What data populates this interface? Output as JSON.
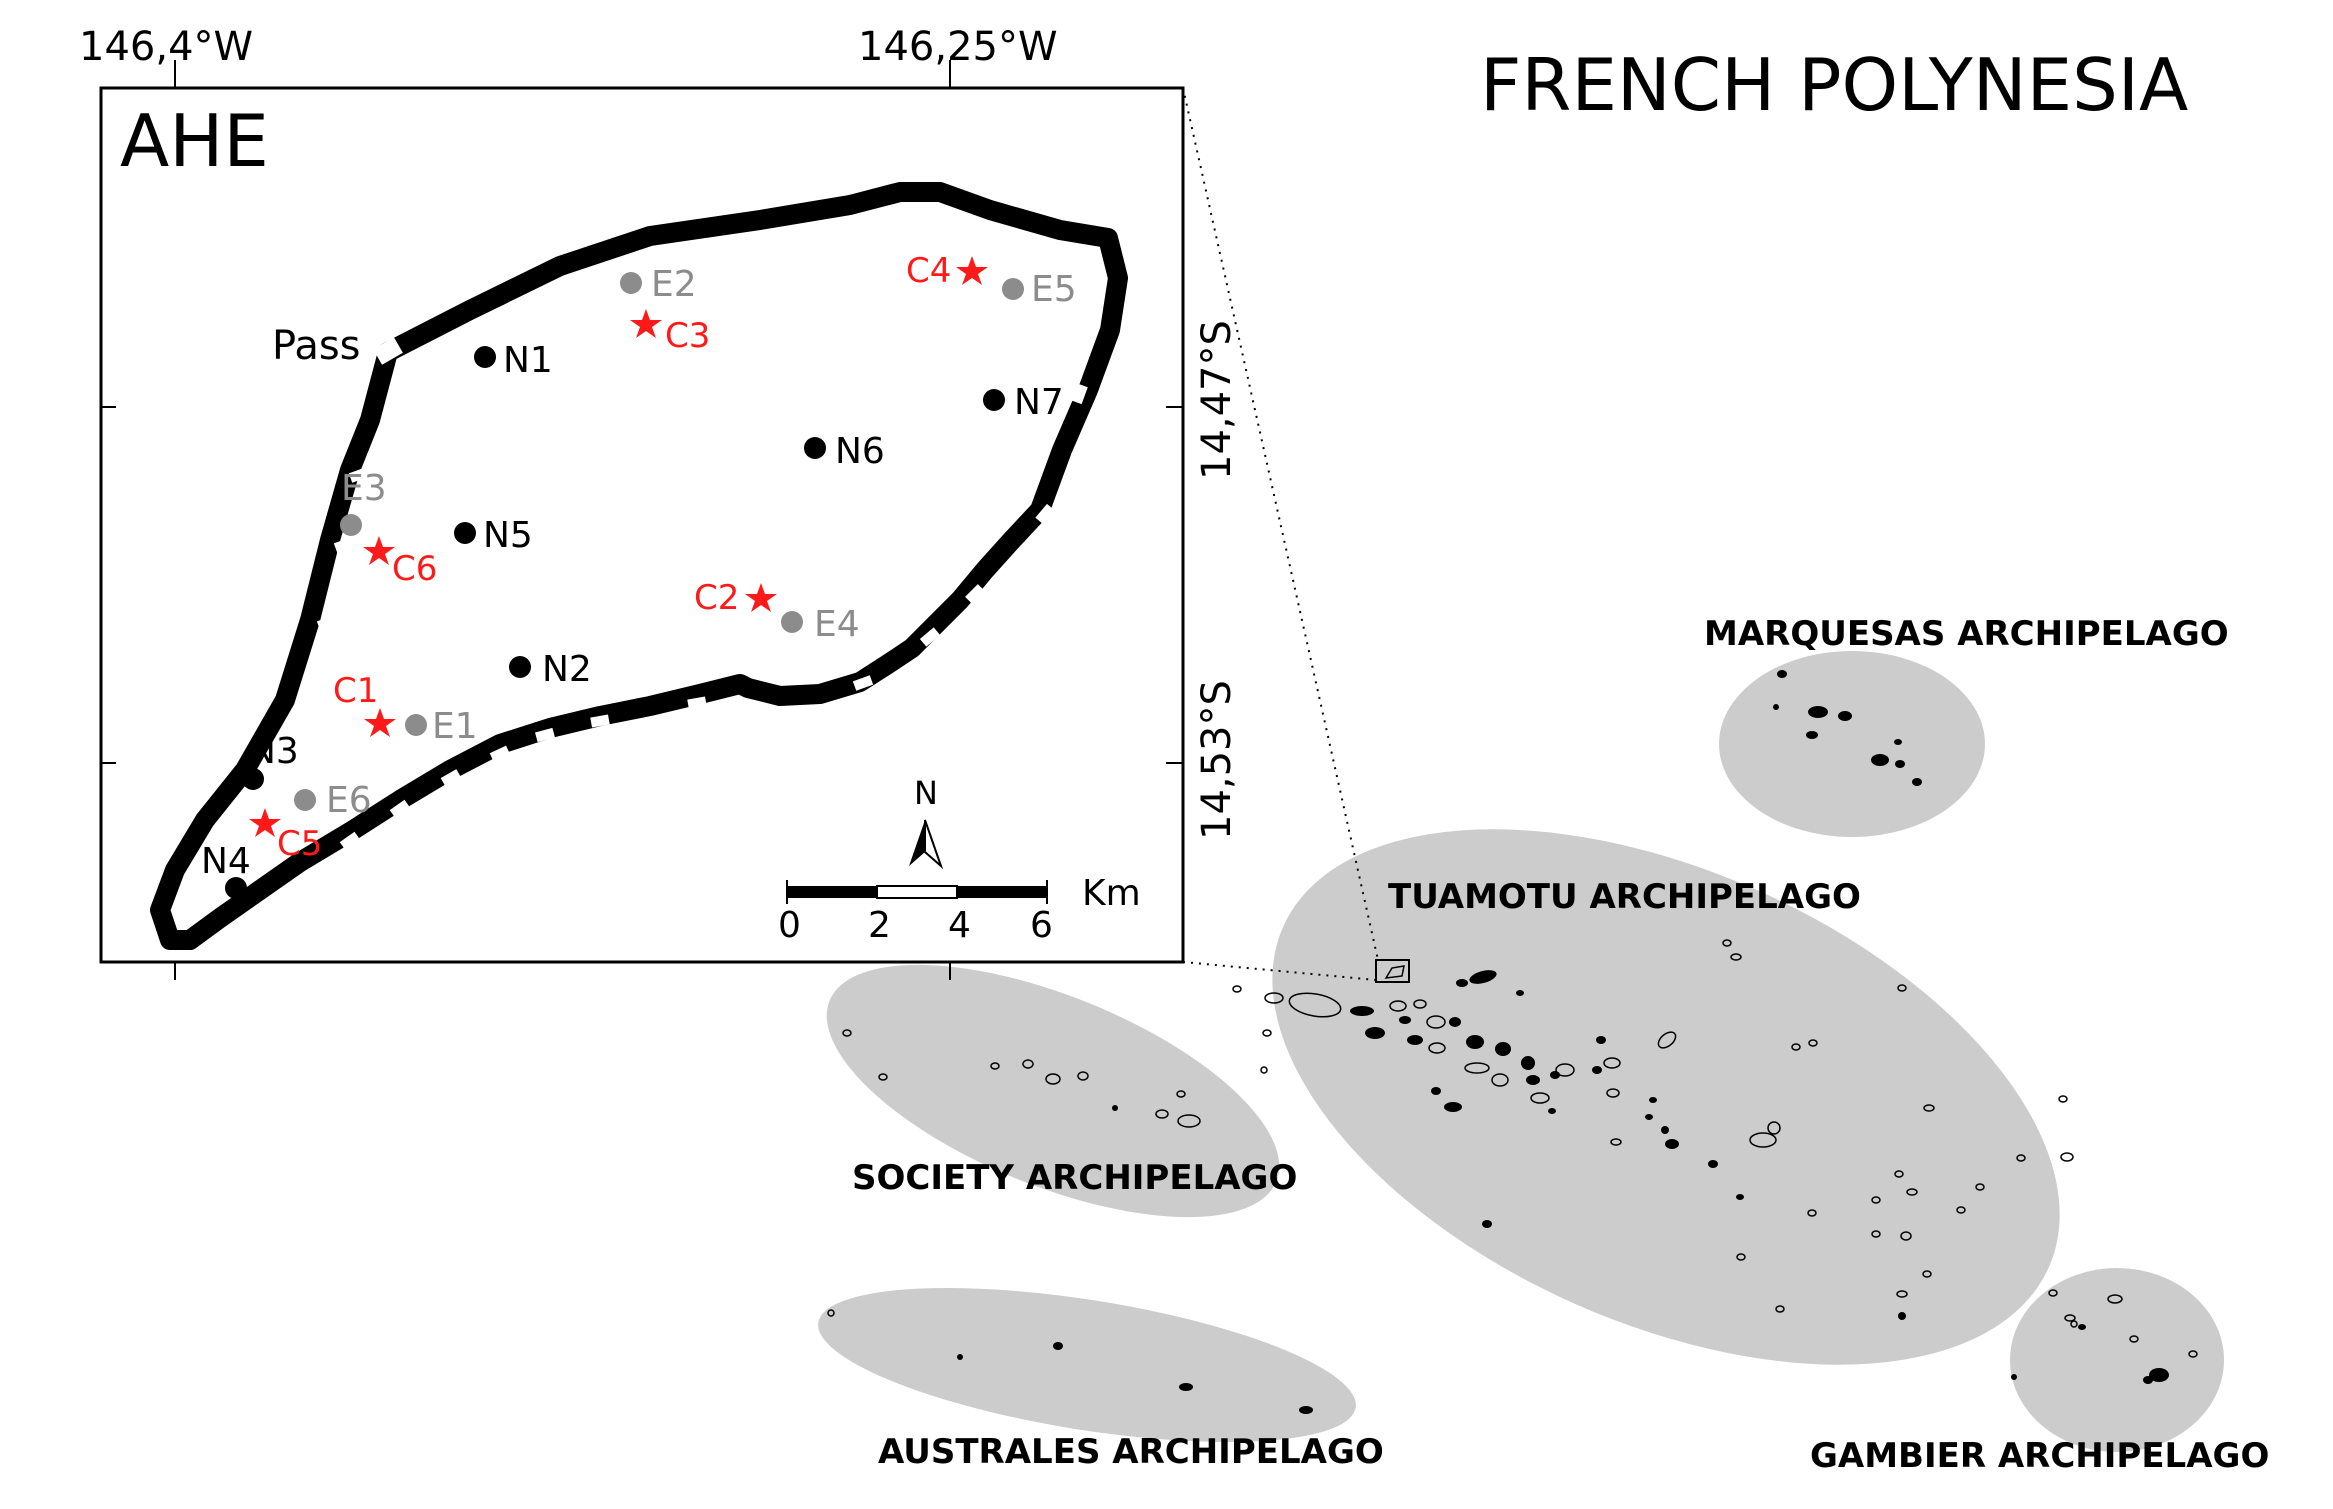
{
  "map": {
    "title": "FRENCH POLYNESIA",
    "inset": {
      "name": "AHE",
      "lon_labels": [
        "146,4°W",
        "146,25°W"
      ],
      "lat_labels": [
        "14,47°S",
        "14,53°S"
      ],
      "pass_label": "Pass",
      "north_label": "N",
      "scale_unit": "Km",
      "scale_ticks": [
        "0",
        "2",
        "4",
        "6"
      ],
      "stations": {
        "N": [
          {
            "label": "N1",
            "category": "N"
          },
          {
            "label": "N2",
            "category": "N"
          },
          {
            "label": "N3",
            "category": "N"
          },
          {
            "label": "N4",
            "category": "N"
          },
          {
            "label": "N5",
            "category": "N"
          },
          {
            "label": "N6",
            "category": "N"
          },
          {
            "label": "N7",
            "category": "N"
          }
        ],
        "E": [
          {
            "label": "E1",
            "category": "E"
          },
          {
            "label": "E2",
            "category": "E"
          },
          {
            "label": "E3",
            "category": "E"
          },
          {
            "label": "E4",
            "category": "E"
          },
          {
            "label": "E5",
            "category": "E"
          },
          {
            "label": "E6",
            "category": "E"
          }
        ],
        "C": [
          {
            "label": "C1",
            "category": "C"
          },
          {
            "label": "C2",
            "category": "C"
          },
          {
            "label": "C3",
            "category": "C"
          },
          {
            "label": "C4",
            "category": "C"
          },
          {
            "label": "C5",
            "category": "C"
          },
          {
            "label": "C6",
            "category": "C"
          }
        ]
      }
    },
    "archipelagos": [
      {
        "label": "MARQUESAS ARCHIPELAGO"
      },
      {
        "label": "TUAMOTU ARCHIPELAGO"
      },
      {
        "label": "SOCIETY ARCHIPELAGO"
      },
      {
        "label": "AUSTRALES ARCHIPELAGO"
      },
      {
        "label": "GAMBIER ARCHIPELAGO"
      }
    ],
    "colors": {
      "station_N": "#000000",
      "station_E": "#8c8c8c",
      "station_C": "#ff1a1a",
      "archipelago_fill": "#cccccc",
      "land": "#000000"
    }
  }
}
